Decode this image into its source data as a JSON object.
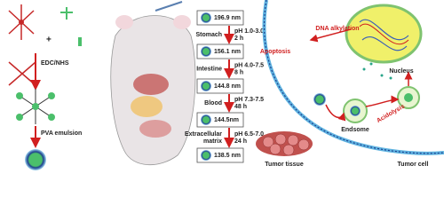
{
  "synthesis": {
    "reagent": "EDC/NHS",
    "method": "PVA emulsion"
  },
  "stages": [
    {
      "size": "196.9 nm",
      "organ": [
        "Stomach"
      ],
      "ph": "pH 1.0-3.0",
      "time": "2 h"
    },
    {
      "size": "156.1 nm",
      "organ": [
        "Intestine"
      ],
      "ph": "pH 4.0-7.5",
      "time": "8 h"
    },
    {
      "size": "144.8 nm",
      "organ": [
        "Blood"
      ],
      "ph": "pH 7.3-7.5",
      "time": "48 h"
    },
    {
      "size": "144.5nm",
      "organ": [
        "Extracellular",
        "matrix"
      ],
      "ph": "pH 6.5-7.0",
      "time": "24 h"
    },
    {
      "size": "138.5 nm"
    }
  ],
  "labels": {
    "tissue": "Tumor tissue",
    "cell": "Tumor cell",
    "dna": "DNA alkylation",
    "apoptosis": "Apoptosis",
    "nucleus": "Nucleus",
    "endosome": "Endsome",
    "acidolysis": "Acidolysis"
  }
}
